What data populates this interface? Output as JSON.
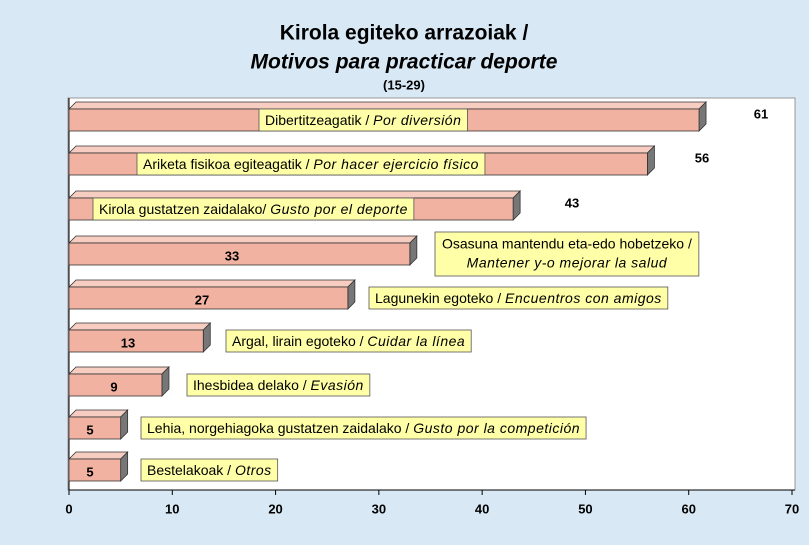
{
  "chart_data": {
    "type": "bar",
    "orientation": "horizontal",
    "title": "Kirola egiteko arrazoiak /",
    "subtitle": "Motivos para practicar deporte",
    "note": "(15-29)",
    "categories": [
      {
        "text": "Dibertitzeagatik / ",
        "italic": "Por diversión"
      },
      {
        "text": "Ariketa fisikoa egiteagatik / ",
        "italic": "Por hacer ejercicio físico"
      },
      {
        "text": "Kirola gustatzen zaidalako/ ",
        "italic": "Gusto por el deporte"
      },
      {
        "text": "Osasuna mantendu eta-edo hobetzeko /",
        "italic": "Mantener y-o mejorar la salud"
      },
      {
        "text": "Lagunekin egoteko / ",
        "italic": "Encuentros con amigos"
      },
      {
        "text": "Argal, lirain egoteko / ",
        "italic": "Cuidar la línea"
      },
      {
        "text": "Ihesbidea delako / ",
        "italic": "Evasión"
      },
      {
        "text": "Lehia, norgehiagoka gustatzen zaidalako / ",
        "italic": "Gusto por la competición"
      },
      {
        "text": "Bestelakoak / ",
        "italic": "Otros"
      }
    ],
    "values": [
      61,
      56,
      43,
      33,
      27,
      13,
      9,
      5,
      5
    ],
    "color": "#f2b2a2",
    "xlim": [
      0,
      70
    ],
    "xticks": [
      0,
      10,
      20,
      30,
      40,
      50,
      60,
      70
    ]
  }
}
